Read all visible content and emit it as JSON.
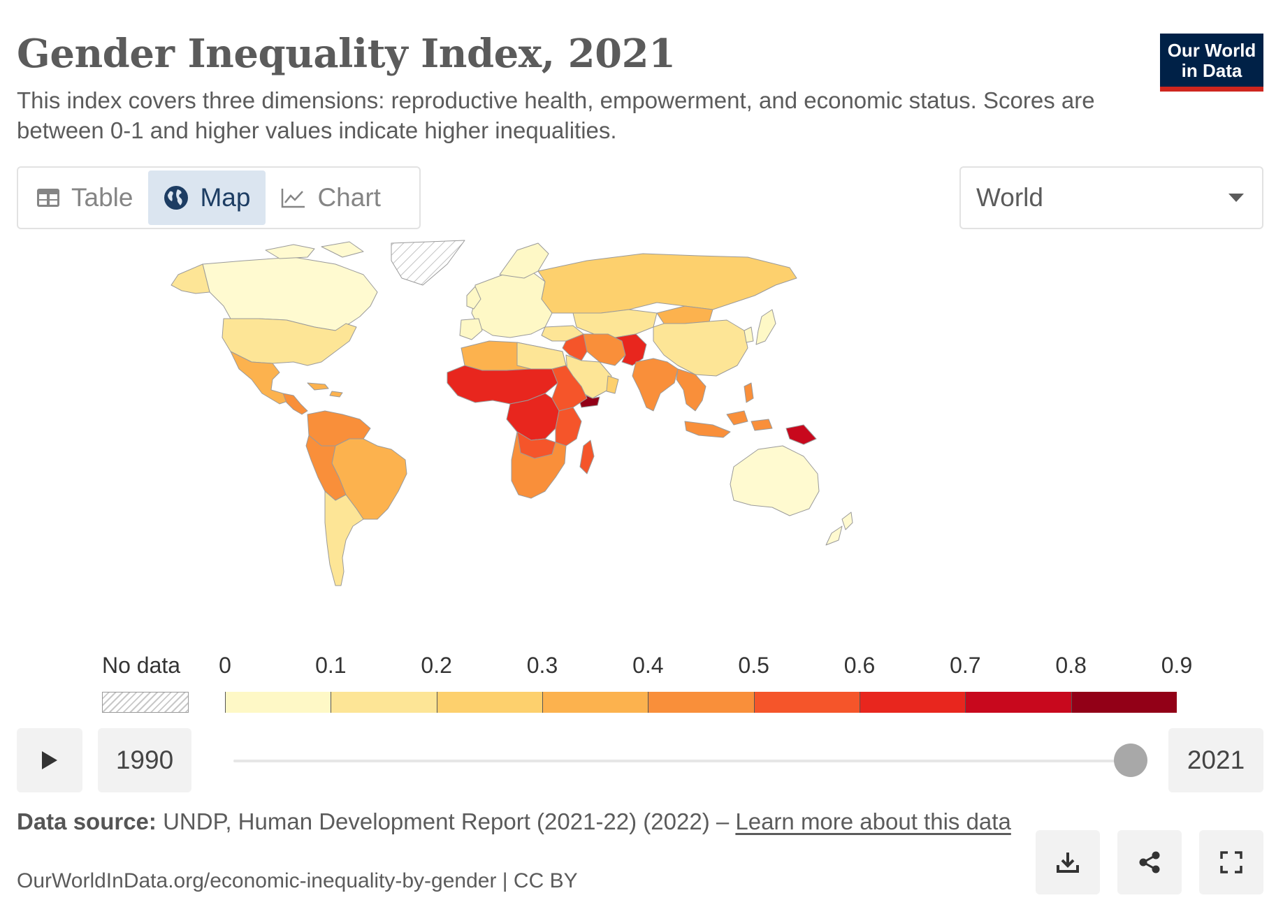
{
  "header": {
    "title": "Gender Inequality Index, 2021",
    "subtitle": "This index covers three dimensions: reproductive health, empowerment, and economic status. Scores are between 0-1 and higher values indicate higher inequalities."
  },
  "logo": {
    "line1": "Our World",
    "line2": "in Data"
  },
  "tabs": [
    {
      "label": "Table",
      "icon": "table-icon",
      "active": false
    },
    {
      "label": "Map",
      "icon": "globe-icon",
      "active": true
    },
    {
      "label": "Chart",
      "icon": "line-chart-icon",
      "active": false
    }
  ],
  "region_select": {
    "value": "World"
  },
  "legend": {
    "no_data_label": "No data",
    "ticks": [
      "0",
      "0.1",
      "0.2",
      "0.3",
      "0.4",
      "0.5",
      "0.6",
      "0.7",
      "0.8",
      "0.9"
    ],
    "colors": [
      "#fef8c6",
      "#fde596",
      "#fdd06d",
      "#fcb24e",
      "#f98f3a",
      "#f5552a",
      "#e8261e",
      "#c8081d",
      "#920017"
    ]
  },
  "timeline": {
    "start_year": "1990",
    "end_year": "2021",
    "selected_fraction": 1.0
  },
  "footer": {
    "source_prefix": "Data source:",
    "source_text": "UNDP, Human Development Report (2021-22) (2022) – ",
    "learn_more": "Learn more about this data",
    "url": "OurWorldInData.org/economic-inequality-by-gender | CC BY"
  },
  "actions": [
    {
      "name": "download-button",
      "icon": "download-icon"
    },
    {
      "name": "share-button",
      "icon": "share-icon"
    },
    {
      "name": "fullscreen-button",
      "icon": "fullscreen-icon"
    }
  ]
}
